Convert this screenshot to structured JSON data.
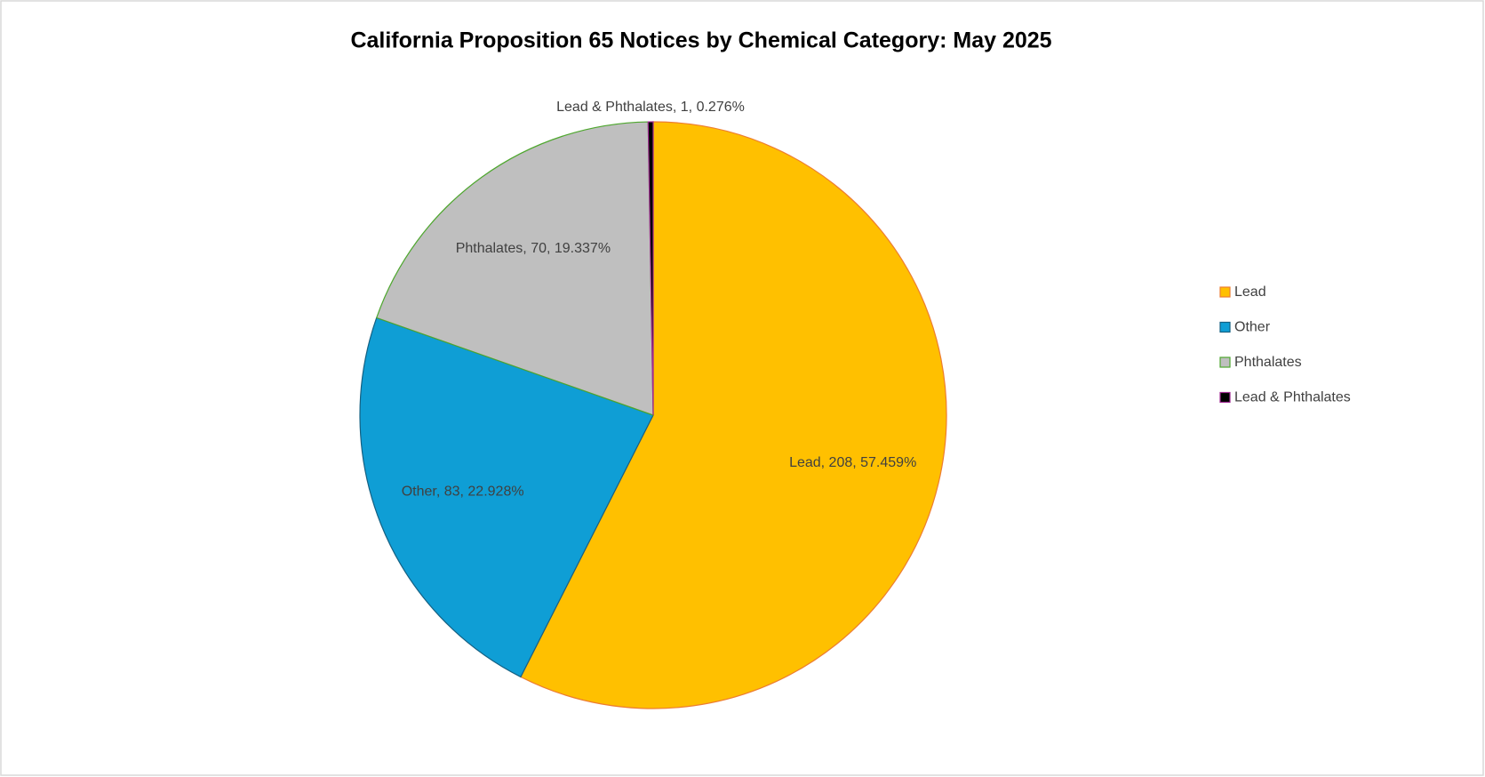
{
  "chart_data": {
    "type": "pie",
    "title": "California Proposition 65 Notices by Chemical Category: May 2025",
    "categories": [
      "Lead",
      "Other",
      "Phthalates",
      "Lead & Phthalates"
    ],
    "values": [
      208,
      83,
      70,
      1
    ],
    "value_labels": [
      "Lead, 208, 57.459%",
      "Other, 83, 22.928%",
      "Phthalates, 70, 19.337%",
      "Lead & Phthalates, 1, 0.276%"
    ],
    "colors": [
      "#FFC000",
      "#0F9ED5",
      "#BFBFBF",
      "#000000"
    ],
    "edge_colors": [
      "#ED7D31",
      "#156082",
      "#4EA72E",
      "#A02B93"
    ],
    "legend": "right"
  }
}
